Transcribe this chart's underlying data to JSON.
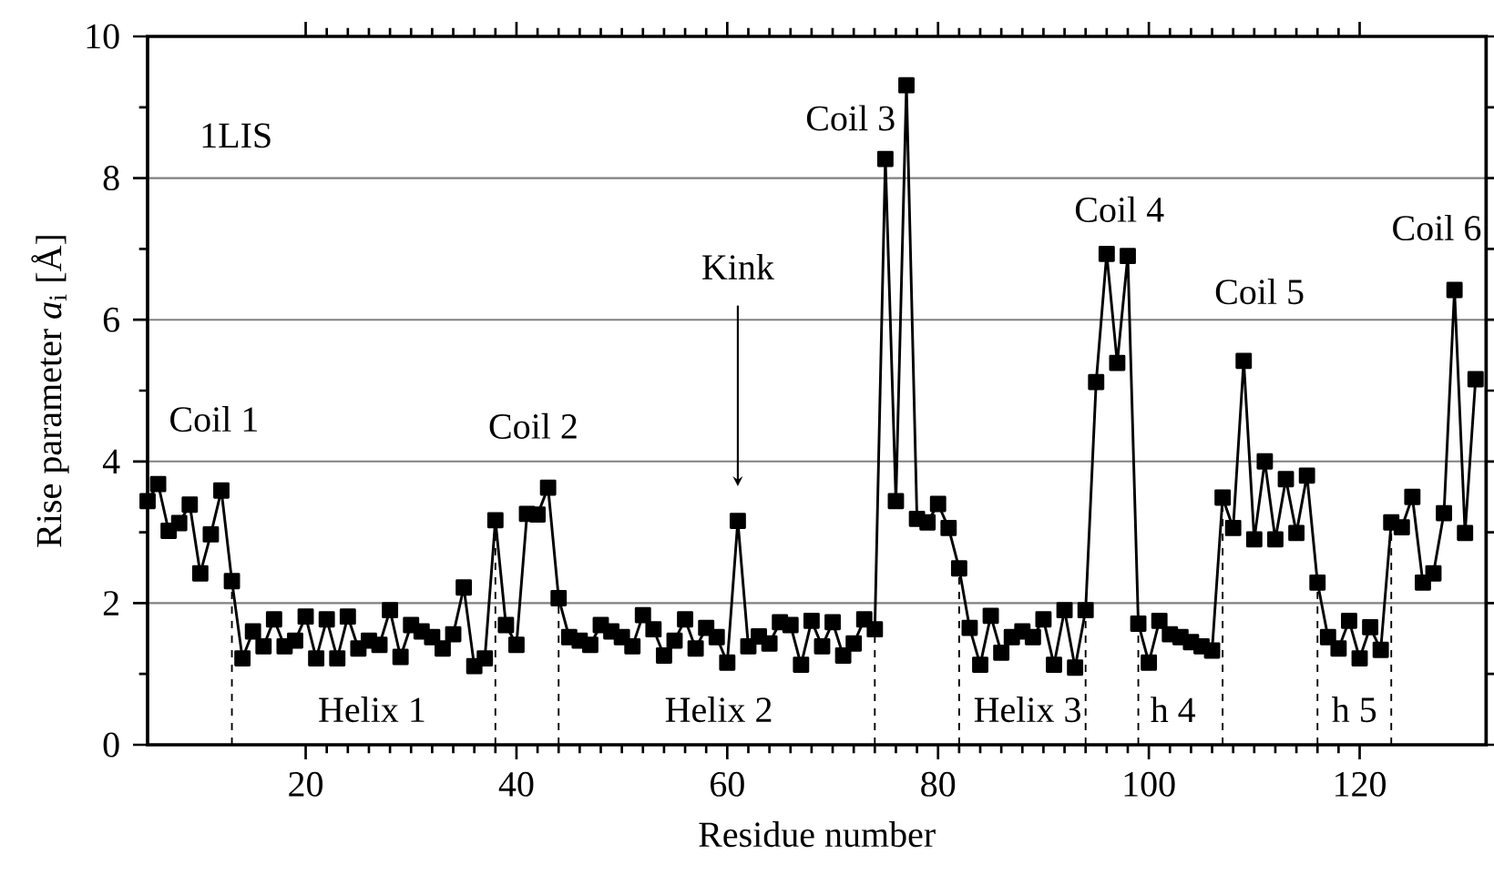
{
  "chart_data": {
    "type": "line",
    "xlabel": "Residue number",
    "ylabel": "Rise parameter *a*$_{i}$ [Å]",
    "x": [
      5,
      6,
      7,
      8,
      9,
      10,
      11,
      12,
      13,
      14,
      15,
      16,
      17,
      18,
      19,
      20,
      21,
      22,
      23,
      24,
      25,
      26,
      27,
      28,
      29,
      30,
      31,
      32,
      33,
      34,
      35,
      36,
      37,
      38,
      39,
      40,
      41,
      42,
      43,
      44,
      45,
      46,
      47,
      48,
      49,
      50,
      51,
      52,
      53,
      54,
      55,
      56,
      57,
      58,
      59,
      60,
      61,
      62,
      63,
      64,
      65,
      66,
      67,
      68,
      69,
      70,
      71,
      72,
      73,
      74,
      75,
      76,
      77,
      78,
      79,
      80,
      81,
      82,
      83,
      84,
      85,
      86,
      87,
      88,
      89,
      90,
      91,
      92,
      93,
      94,
      95,
      96,
      97,
      98,
      99,
      100,
      101,
      102,
      103,
      104,
      105,
      106,
      107,
      108,
      109,
      110,
      111,
      112,
      113,
      114,
      115,
      116,
      117,
      118,
      119,
      120,
      121,
      122,
      123,
      124,
      125,
      126,
      127,
      128,
      129,
      130,
      131
    ],
    "series": [
      {
        "color": "#000000",
        "values": [
          3.44,
          3.68,
          3.02,
          3.13,
          3.39,
          2.42,
          2.97,
          3.59,
          2.31,
          1.22,
          1.6,
          1.39,
          1.77,
          1.39,
          1.47,
          1.81,
          1.22,
          1.77,
          1.22,
          1.81,
          1.36,
          1.47,
          1.41,
          1.9,
          1.24,
          1.69,
          1.6,
          1.52,
          1.36,
          1.56,
          2.22,
          1.11,
          1.22,
          3.17,
          1.69,
          1.41,
          3.26,
          3.25,
          3.63,
          2.07,
          1.52,
          1.47,
          1.41,
          1.69,
          1.6,
          1.52,
          1.39,
          1.83,
          1.63,
          1.26,
          1.47,
          1.77,
          1.36,
          1.65,
          1.52,
          1.16,
          3.16,
          1.39,
          1.53,
          1.43,
          1.73,
          1.69,
          1.13,
          1.75,
          1.39,
          1.73,
          1.26,
          1.43,
          1.77,
          1.63,
          8.27,
          3.44,
          9.31,
          3.19,
          3.14,
          3.4,
          3.06,
          2.49,
          1.65,
          1.13,
          1.82,
          1.3,
          1.52,
          1.6,
          1.52,
          1.77,
          1.13,
          1.9,
          1.09,
          1.9,
          5.12,
          6.93,
          5.39,
          6.9,
          1.71,
          1.16,
          1.75,
          1.56,
          1.52,
          1.45,
          1.39,
          1.33,
          3.49,
          3.06,
          5.42,
          2.9,
          4.0,
          2.9,
          3.75,
          2.99,
          3.8,
          2.29,
          1.52,
          1.36,
          1.75,
          1.22,
          1.66,
          1.34,
          3.14,
          3.07,
          3.5,
          2.29,
          2.42,
          3.27,
          6.42,
          2.99,
          5.16
        ]
      }
    ],
    "marker": "square",
    "line_style": "solid",
    "grid": "y",
    "xlim": [
      5,
      132
    ],
    "xticks": [
      20,
      40,
      60,
      80,
      100,
      120
    ],
    "ylim": [
      0,
      10
    ],
    "yticks": [
      0,
      2,
      4,
      6,
      8,
      10
    ],
    "ref_lines": [
      {
        "axis": "x",
        "value": 13,
        "line_style": "dashed",
        "color": "#000000"
      },
      {
        "axis": "x",
        "value": 38,
        "line_style": "dashed",
        "color": "#000000"
      },
      {
        "axis": "x",
        "value": 44,
        "line_style": "dashed",
        "color": "#000000"
      },
      {
        "axis": "x",
        "value": 74,
        "line_style": "dashed",
        "color": "#000000"
      },
      {
        "axis": "x",
        "value": 82,
        "line_style": "dashed",
        "color": "#000000"
      },
      {
        "axis": "x",
        "value": 94,
        "line_style": "dashed",
        "color": "#000000"
      },
      {
        "axis": "x",
        "value": 99,
        "line_style": "dashed",
        "color": "#000000"
      },
      {
        "axis": "x",
        "value": 107,
        "line_style": "dashed",
        "color": "#000000"
      },
      {
        "axis": "x",
        "value": 116,
        "line_style": "dashed",
        "color": "#000000"
      },
      {
        "axis": "x",
        "value": 123,
        "line_style": "dashed",
        "color": "#000000"
      }
    ],
    "annotations": [
      "1LIS",
      "Coil 1",
      "Coil 2",
      "Coil 3",
      "Kink",
      "Coil 4",
      "Coil 5",
      "Coil 6",
      "Helix 1",
      "Helix 2",
      "Helix 3",
      "h 4",
      "h 5"
    ]
  }
}
